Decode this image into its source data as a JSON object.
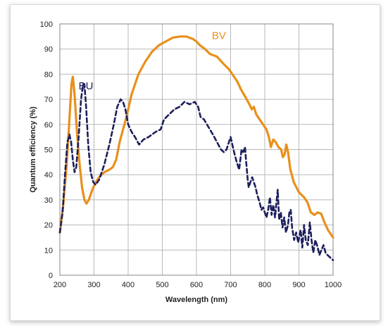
{
  "chart_data": {
    "type": "line",
    "title": "",
    "xlabel": "Wavelength (nm)",
    "ylabel": "Quantum efficiency (%)",
    "xlim": [
      200,
      1000
    ],
    "ylim": [
      0,
      100
    ],
    "xticks": [
      200,
      300,
      400,
      500,
      600,
      700,
      800,
      900,
      1000
    ],
    "yticks": [
      0,
      10,
      20,
      30,
      40,
      50,
      60,
      70,
      80,
      90,
      100
    ],
    "grid": true,
    "series": [
      {
        "name": "BV",
        "color": "#E8901C",
        "style": "solid",
        "label_at": [
          645,
          94
        ],
        "points": [
          [
            200,
            17
          ],
          [
            210,
            28
          ],
          [
            220,
            44
          ],
          [
            228,
            62
          ],
          [
            234,
            76
          ],
          [
            238,
            79
          ],
          [
            243,
            72
          ],
          [
            250,
            57
          ],
          [
            258,
            44
          ],
          [
            265,
            35
          ],
          [
            272,
            30
          ],
          [
            278,
            28.5
          ],
          [
            285,
            30
          ],
          [
            295,
            34
          ],
          [
            305,
            37
          ],
          [
            315,
            39
          ],
          [
            330,
            41
          ],
          [
            345,
            42
          ],
          [
            355,
            43
          ],
          [
            365,
            46
          ],
          [
            375,
            53
          ],
          [
            385,
            58
          ],
          [
            395,
            63
          ],
          [
            410,
            72
          ],
          [
            430,
            80
          ],
          [
            450,
            85
          ],
          [
            470,
            89
          ],
          [
            490,
            91.5
          ],
          [
            510,
            93
          ],
          [
            530,
            94.5
          ],
          [
            550,
            95
          ],
          [
            570,
            95
          ],
          [
            590,
            94
          ],
          [
            600,
            93
          ],
          [
            610,
            91.5
          ],
          [
            625,
            90
          ],
          [
            640,
            88
          ],
          [
            660,
            87
          ],
          [
            680,
            84
          ],
          [
            695,
            82
          ],
          [
            710,
            79
          ],
          [
            720,
            77
          ],
          [
            730,
            74
          ],
          [
            745,
            70.5
          ],
          [
            755,
            68
          ],
          [
            762,
            66
          ],
          [
            768,
            67
          ],
          [
            775,
            64
          ],
          [
            785,
            62
          ],
          [
            795,
            60
          ],
          [
            805,
            58
          ],
          [
            812,
            55
          ],
          [
            818,
            51
          ],
          [
            825,
            54
          ],
          [
            832,
            53
          ],
          [
            840,
            51
          ],
          [
            848,
            50
          ],
          [
            853,
            47
          ],
          [
            858,
            48
          ],
          [
            863,
            52
          ],
          [
            868,
            49
          ],
          [
            875,
            42
          ],
          [
            885,
            37
          ],
          [
            900,
            33
          ],
          [
            915,
            31
          ],
          [
            925,
            29
          ],
          [
            935,
            25
          ],
          [
            945,
            24
          ],
          [
            955,
            25
          ],
          [
            965,
            24.5
          ],
          [
            975,
            21
          ],
          [
            985,
            18
          ],
          [
            1000,
            15
          ]
        ]
      },
      {
        "name": "BU",
        "color": "#1C1F5C",
        "style": "dashed",
        "label_at": [
          255,
          74
        ],
        "points": [
          [
            200,
            17
          ],
          [
            208,
            25
          ],
          [
            215,
            40
          ],
          [
            222,
            53
          ],
          [
            228,
            56
          ],
          [
            233,
            53
          ],
          [
            238,
            46
          ],
          [
            243,
            41
          ],
          [
            248,
            43
          ],
          [
            255,
            55
          ],
          [
            262,
            70
          ],
          [
            268,
            76
          ],
          [
            272,
            76
          ],
          [
            277,
            67
          ],
          [
            283,
            52
          ],
          [
            290,
            41
          ],
          [
            298,
            37
          ],
          [
            305,
            36
          ],
          [
            315,
            38
          ],
          [
            330,
            44
          ],
          [
            345,
            52
          ],
          [
            358,
            60
          ],
          [
            368,
            67
          ],
          [
            378,
            70
          ],
          [
            385,
            69
          ],
          [
            392,
            66
          ],
          [
            400,
            60
          ],
          [
            410,
            57
          ],
          [
            420,
            55
          ],
          [
            432,
            52
          ],
          [
            445,
            54
          ],
          [
            460,
            55
          ],
          [
            480,
            57
          ],
          [
            495,
            58
          ],
          [
            505,
            62
          ],
          [
            520,
            64
          ],
          [
            535,
            66
          ],
          [
            550,
            67
          ],
          [
            565,
            69
          ],
          [
            580,
            68
          ],
          [
            595,
            69
          ],
          [
            605,
            67
          ],
          [
            612,
            63
          ],
          [
            622,
            62
          ],
          [
            635,
            59
          ],
          [
            648,
            56
          ],
          [
            660,
            53
          ],
          [
            672,
            50
          ],
          [
            680,
            49
          ],
          [
            688,
            50
          ],
          [
            695,
            53
          ],
          [
            700,
            55
          ],
          [
            705,
            52
          ],
          [
            712,
            48
          ],
          [
            718,
            45
          ],
          [
            725,
            42
          ],
          [
            732,
            50
          ],
          [
            737,
            49
          ],
          [
            742,
            51
          ],
          [
            745,
            46
          ],
          [
            750,
            38
          ],
          [
            753,
            35
          ],
          [
            758,
            37
          ],
          [
            763,
            39
          ],
          [
            768,
            37
          ],
          [
            773,
            35
          ],
          [
            778,
            32
          ],
          [
            785,
            29
          ],
          [
            790,
            26
          ],
          [
            795,
            27
          ],
          [
            800,
            25
          ],
          [
            805,
            23
          ],
          [
            810,
            26
          ],
          [
            815,
            31
          ],
          [
            820,
            24
          ],
          [
            825,
            28
          ],
          [
            830,
            23
          ],
          [
            835,
            30
          ],
          [
            838,
            34
          ],
          [
            842,
            22
          ],
          [
            847,
            25
          ],
          [
            852,
            19
          ],
          [
            857,
            23
          ],
          [
            862,
            17
          ],
          [
            868,
            20
          ],
          [
            872,
            25
          ],
          [
            876,
            26
          ],
          [
            880,
            19
          ],
          [
            886,
            14
          ],
          [
            892,
            17
          ],
          [
            898,
            13
          ],
          [
            905,
            18
          ],
          [
            910,
            11
          ],
          [
            915,
            20
          ],
          [
            920,
            14
          ],
          [
            926,
            12
          ],
          [
            932,
            21
          ],
          [
            937,
            14
          ],
          [
            942,
            9
          ],
          [
            948,
            14
          ],
          [
            955,
            11
          ],
          [
            960,
            8
          ],
          [
            966,
            10
          ],
          [
            972,
            12
          ],
          [
            978,
            9
          ],
          [
            984,
            8
          ],
          [
            992,
            7
          ],
          [
            1000,
            6
          ]
        ]
      }
    ]
  }
}
